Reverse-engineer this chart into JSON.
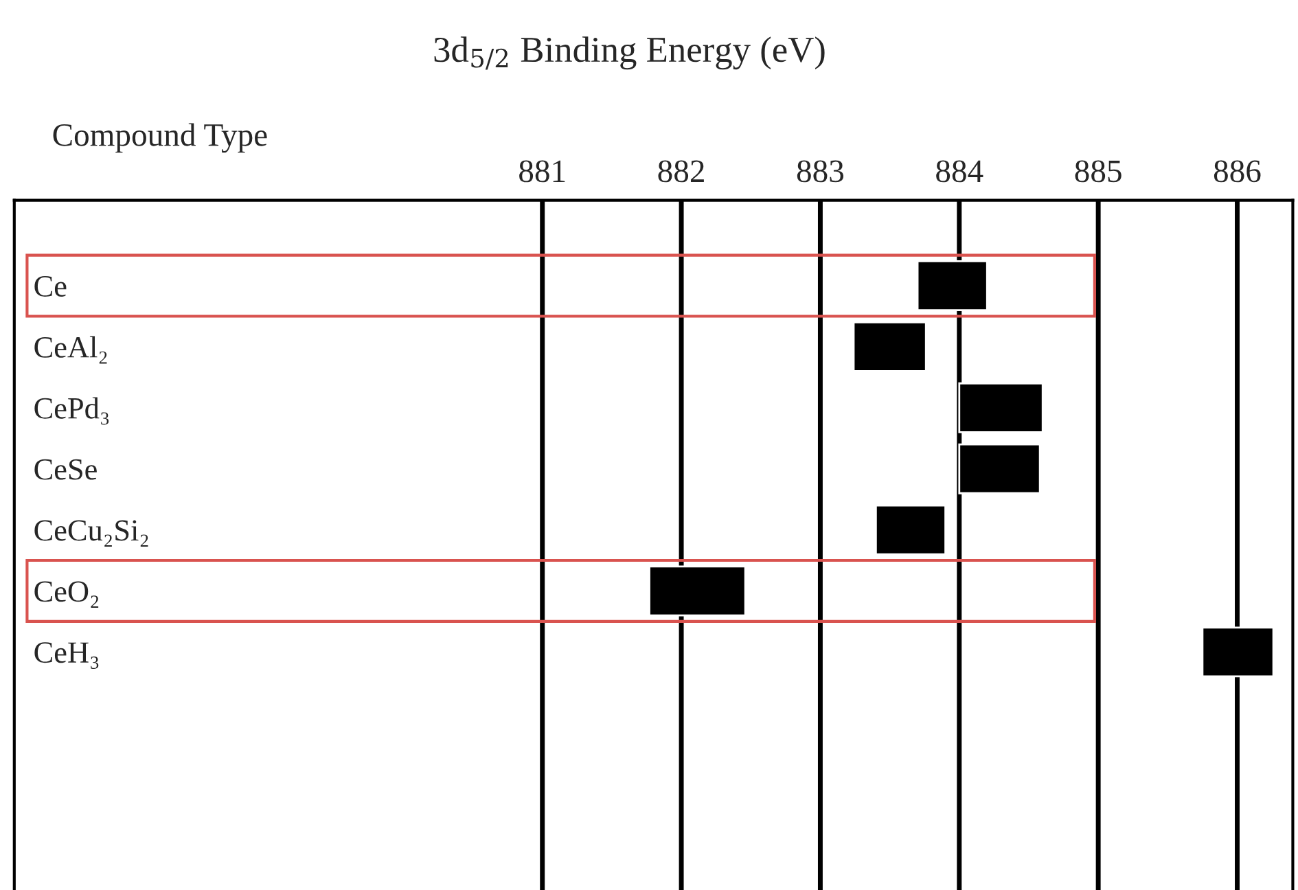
{
  "chart_data": {
    "type": "bar",
    "orientation": "horizontal",
    "title": "3d$_{5/2}$ Binding Energy (eV)",
    "ylabel": "Compound Type",
    "categories": [
      "Ce",
      "CeAl₂",
      "CePd₃",
      "CeSe",
      "CeCu₂Si₂",
      "CeO₂",
      "CeH₃"
    ],
    "base": [
      883.7,
      883.24,
      884.0,
      884.0,
      883.4,
      881.77,
      885.75
    ],
    "values": [
      0.5,
      0.52,
      0.6,
      0.58,
      0.5,
      0.69,
      0.51
    ],
    "color": "#000000",
    "xlim": [
      877.2,
      886.4
    ],
    "xticks": [
      881,
      882,
      883,
      884,
      885,
      886
    ],
    "grid": "x"
  }
}
